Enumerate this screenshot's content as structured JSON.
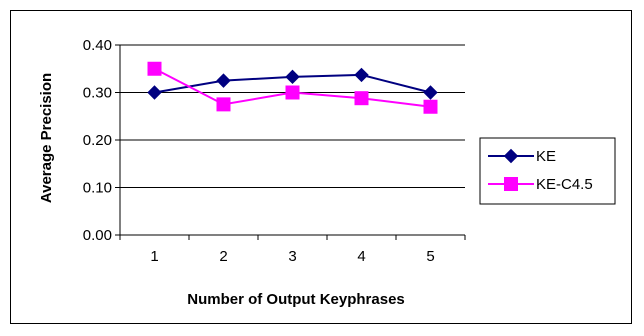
{
  "chart_data": {
    "type": "line",
    "title": "",
    "xlabel": "Number of Output Keyphrases",
    "ylabel": "Average Precision",
    "categories": [
      "1",
      "2",
      "3",
      "4",
      "5"
    ],
    "ylim": [
      0,
      0.4
    ],
    "yticks": [
      "0.00",
      "0.10",
      "0.20",
      "0.30",
      "0.40"
    ],
    "grid": "horizontal major gridlines",
    "legend_position": "right",
    "series": [
      {
        "name": "KE",
        "values": [
          0.3,
          0.325,
          0.333,
          0.337,
          0.3
        ],
        "color": "#000080",
        "marker": "diamond"
      },
      {
        "name": "KE-C4.5",
        "values": [
          0.35,
          0.275,
          0.3,
          0.288,
          0.27
        ],
        "color": "#ff00ff",
        "marker": "square"
      }
    ]
  }
}
